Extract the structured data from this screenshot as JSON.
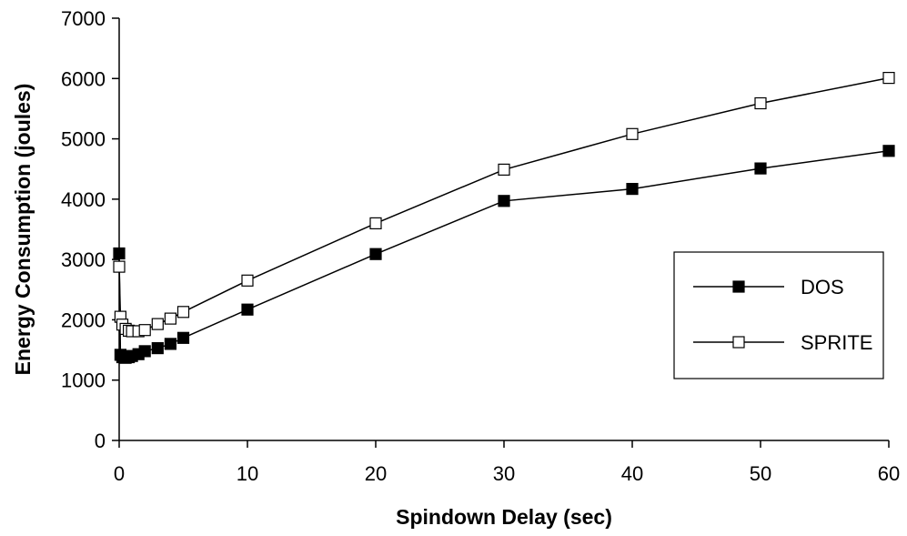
{
  "chart_data": {
    "type": "line",
    "title": "",
    "xlabel": "Spindown Delay (sec)",
    "ylabel": "Energy Consumption (joules)",
    "xlim": [
      0,
      60
    ],
    "ylim": [
      0,
      7000
    ],
    "xticks": [
      0,
      10,
      20,
      30,
      40,
      50,
      60
    ],
    "yticks": [
      0,
      1000,
      2000,
      3000,
      4000,
      5000,
      6000,
      7000
    ],
    "grid": false,
    "legend_position": "right",
    "series": [
      {
        "name": "DOS",
        "marker": "filled-square",
        "color": "#000000",
        "x": [
          0,
          0.1,
          0.25,
          0.5,
          0.75,
          1,
          1.5,
          2,
          3,
          4,
          5,
          10,
          20,
          30,
          40,
          50,
          60
        ],
        "y": [
          3100,
          1420,
          1380,
          1370,
          1380,
          1400,
          1430,
          1480,
          1530,
          1600,
          1700,
          2170,
          3090,
          3970,
          4170,
          4510,
          4800
        ]
      },
      {
        "name": "SPRITE",
        "marker": "open-square",
        "color": "#000000",
        "x": [
          0,
          0.1,
          0.25,
          0.5,
          0.75,
          1,
          1.5,
          2,
          3,
          4,
          5,
          10,
          20,
          30,
          40,
          50,
          60
        ],
        "y": [
          2880,
          2050,
          1920,
          1850,
          1820,
          1810,
          1810,
          1830,
          1930,
          2020,
          2130,
          2650,
          3600,
          4490,
          5080,
          5590,
          6010
        ]
      }
    ]
  }
}
